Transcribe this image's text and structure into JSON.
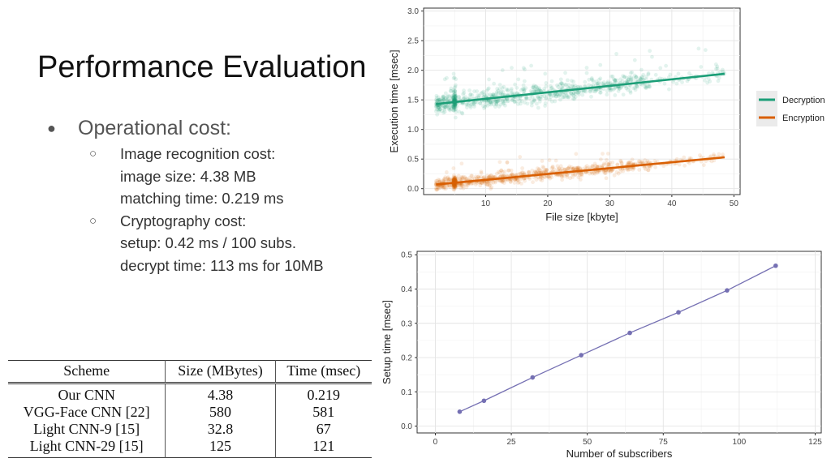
{
  "slide": {
    "title": "Performance Evaluation",
    "bullet": {
      "label": "Operational cost:",
      "items": [
        {
          "lines": [
            "Image recognition cost:",
            "image size: 4.38 MB",
            "matching time: 0.219 ms"
          ]
        },
        {
          "lines": [
            "Cryptography cost:",
            "setup: 0.42 ms / 100 subs.",
            "decrypt time: 113 ms for 10MB"
          ]
        }
      ]
    }
  },
  "table": {
    "headers": [
      "Scheme",
      "Size (MBytes)",
      "Time (msec)"
    ],
    "rows": [
      [
        "Our CNN",
        "4.38",
        "0.219"
      ],
      [
        "VGG-Face CNN [22]",
        "580",
        "581"
      ],
      [
        "Light CNN-9 [15]",
        "32.8",
        "67"
      ],
      [
        "Light CNN-29 [15]",
        "125",
        "121"
      ]
    ]
  },
  "chart_data": [
    {
      "type": "scatter",
      "xlabel": "File size [kbyte]",
      "ylabel": "Execution time [msec]",
      "xlim": [
        0,
        51
      ],
      "ylim": [
        -0.1,
        3.05
      ],
      "x_ticks": [
        10,
        20,
        30,
        40,
        50
      ],
      "y_ticks": [
        0.0,
        0.5,
        1.0,
        1.5,
        2.0,
        2.5,
        3.0
      ],
      "grid": true,
      "legend_position": "right",
      "series": [
        {
          "name": "Decryption",
          "color": "#1b9e77",
          "x_range": [
            2,
            48.5
          ],
          "trend": [
            [
              2,
              1.43
            ],
            [
              48.5,
              1.94
            ]
          ],
          "spread": 0.08
        },
        {
          "name": "Encryption",
          "color": "#d95f02",
          "x_range": [
            2,
            48.5
          ],
          "trend": [
            [
              2,
              0.07
            ],
            [
              48.5,
              0.53
            ]
          ],
          "spread": 0.05
        }
      ]
    },
    {
      "type": "line",
      "xlabel": "Number of subscribers",
      "ylabel": "Setup time [msec]",
      "xlim": [
        -6,
        127
      ],
      "ylim": [
        -0.02,
        0.51
      ],
      "x_ticks": [
        0,
        25,
        50,
        75,
        100,
        125
      ],
      "y_ticks": [
        0.0,
        0.1,
        0.2,
        0.3,
        0.4,
        0.5
      ],
      "grid": true,
      "series": [
        {
          "color": "#7570b3",
          "x": [
            8,
            16,
            32,
            48,
            64,
            80,
            96,
            112
          ],
          "y": [
            0.042,
            0.074,
            0.142,
            0.207,
            0.272,
            0.332,
            0.396,
            0.468
          ]
        }
      ]
    }
  ]
}
